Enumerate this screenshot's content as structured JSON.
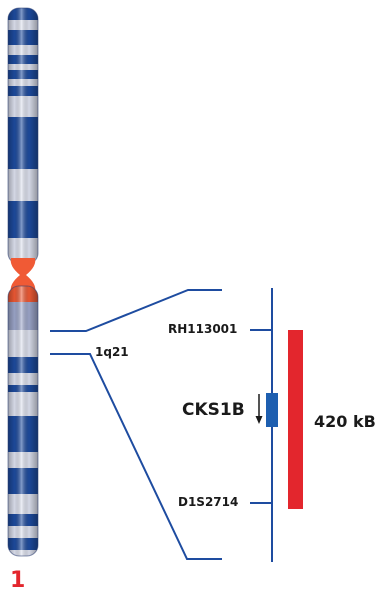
{
  "chromosome": {
    "number": "1",
    "band": "1q21"
  },
  "markers": {
    "top": "RH113001",
    "bottom": "D1S2714"
  },
  "gene": {
    "name": "CKS1B",
    "strand_arrow": "down-arrow"
  },
  "region": {
    "size_label": "420 kB"
  },
  "colors": {
    "band_dark": "#1e4ca0",
    "band_light": "#dfe3f1",
    "centromere": "#f05a35",
    "line_blue": "#1e4ca0",
    "gene_box": "#1e5fb0",
    "region_bar": "#e3262d",
    "label_red": "#e3262d"
  }
}
